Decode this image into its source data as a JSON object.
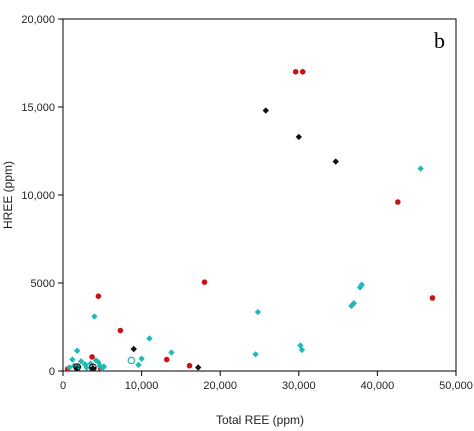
{
  "chart_data": {
    "type": "scatter",
    "panel_label": "b",
    "xlabel": "Total REE (ppm)",
    "ylabel": "HREE (ppm)",
    "xlim": [
      0,
      50000
    ],
    "ylim": [
      0,
      20000
    ],
    "xticks": [
      0,
      10000,
      20000,
      30000,
      40000,
      50000
    ],
    "xtick_labels": [
      "0",
      "10,000",
      "20,000",
      "30,000",
      "40,000",
      "50,000"
    ],
    "yticks": [
      0,
      5000,
      10000,
      15000,
      20000
    ],
    "ytick_labels": [
      "0",
      "5000",
      "10,000",
      "15,000",
      "20,000"
    ],
    "grid": false,
    "series": [
      {
        "marker": "circle",
        "color": "#cc1111",
        "points": [
          [
            29600,
            17000
          ],
          [
            30500,
            17000
          ],
          [
            42600,
            9600
          ],
          [
            47000,
            4150
          ],
          [
            18000,
            5050
          ],
          [
            4500,
            4250
          ],
          [
            7300,
            2300
          ],
          [
            3700,
            800
          ],
          [
            13200,
            650
          ],
          [
            16100,
            300
          ],
          [
            600,
            120
          ],
          [
            4800,
            150
          ]
        ]
      },
      {
        "marker": "diamond",
        "color": "#111111",
        "points": [
          [
            25800,
            14800
          ],
          [
            30000,
            13300
          ],
          [
            34700,
            11900
          ],
          [
            9000,
            1250
          ],
          [
            17200,
            200
          ],
          [
            1800,
            150
          ],
          [
            3800,
            150
          ]
        ]
      },
      {
        "marker": "diamond",
        "color": "#20b8b8",
        "points": [
          [
            45500,
            11500
          ],
          [
            38000,
            4900
          ],
          [
            37800,
            4750
          ],
          [
            37000,
            3850
          ],
          [
            36700,
            3700
          ],
          [
            24800,
            3350
          ],
          [
            30200,
            1450
          ],
          [
            30400,
            1200
          ],
          [
            24500,
            950
          ],
          [
            13800,
            1050
          ],
          [
            11000,
            1850
          ],
          [
            9600,
            350
          ],
          [
            10000,
            700
          ],
          [
            4000,
            3100
          ],
          [
            1800,
            1150
          ],
          [
            1200,
            650
          ],
          [
            2300,
            550
          ],
          [
            2800,
            380
          ],
          [
            3500,
            420
          ],
          [
            4200,
            600
          ],
          [
            4700,
            300
          ],
          [
            5000,
            150
          ],
          [
            800,
            200
          ],
          [
            1400,
            300
          ],
          [
            2000,
            250
          ],
          [
            3000,
            200
          ],
          [
            4500,
            500
          ],
          [
            5200,
            250
          ]
        ]
      },
      {
        "marker": "open-circle",
        "color": "#20b8b8",
        "points": [
          [
            8700,
            600
          ]
        ]
      },
      {
        "marker": "crossed-circle",
        "color": "#111111",
        "points": [
          [
            1800,
            220
          ],
          [
            3800,
            200
          ]
        ]
      }
    ]
  }
}
